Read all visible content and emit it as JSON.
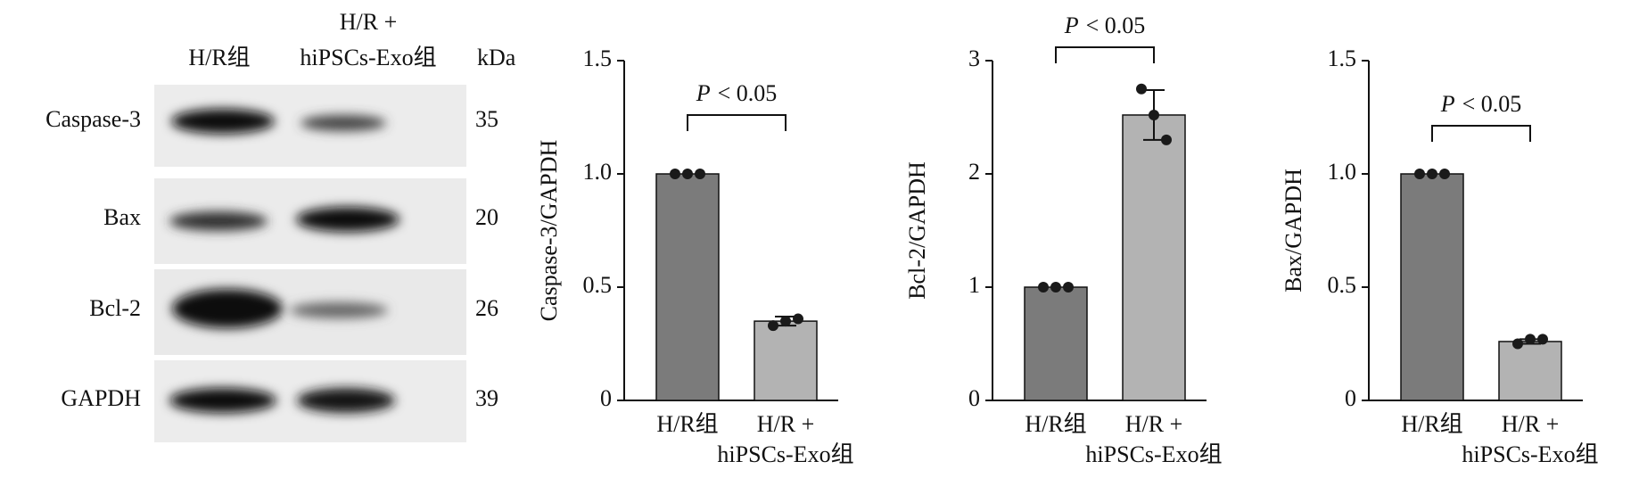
{
  "blot": {
    "columns": [
      [
        "H/R组"
      ],
      [
        "H/R +",
        "hiPSCs-Exo组"
      ]
    ],
    "unit": "kDa",
    "rows": [
      {
        "label": "Caspase-3",
        "kda": "35"
      },
      {
        "label": "Bax",
        "kda": "20"
      },
      {
        "label": "Bcl-2",
        "kda": "26"
      },
      {
        "label": "GAPDH",
        "kda": "39"
      }
    ]
  },
  "chart_data": [
    {
      "type": "bar",
      "ylabel": "Caspase-3/GAPDH",
      "categories": [
        [
          "H/R组"
        ],
        [
          "H/R +",
          "hiPSCs-Exo组"
        ]
      ],
      "values": [
        1.0,
        0.35
      ],
      "errors": [
        0,
        0.02
      ],
      "points": [
        [
          1.0,
          1.0,
          1.0
        ],
        [
          0.33,
          0.35,
          0.36
        ]
      ],
      "colors": [
        "#7b7b7b",
        "#b3b3b3"
      ],
      "ylim": [
        0,
        1.5
      ],
      "yticks": [
        0,
        0.5,
        {
          "value": 1,
          "label": "1.0"
        },
        1.5
      ],
      "annotation": [
        "P",
        "< 0.05"
      ]
    },
    {
      "type": "bar",
      "ylabel": "Bcl-2/GAPDH",
      "categories": [
        [
          "H/R组"
        ],
        [
          "H/R +",
          "hiPSCs-Exo组"
        ]
      ],
      "values": [
        1.0,
        2.52
      ],
      "errors": [
        0,
        0.22
      ],
      "points": [
        [
          1.0,
          1.0,
          1.0
        ],
        [
          2.75,
          2.52,
          2.3
        ]
      ],
      "colors": [
        "#7b7b7b",
        "#b3b3b3"
      ],
      "ylim": [
        0,
        3
      ],
      "yticks": [
        0,
        1,
        2,
        3
      ],
      "annotation": [
        "P",
        "< 0.05"
      ]
    },
    {
      "type": "bar",
      "ylabel": "Bax/GAPDH",
      "categories": [
        [
          "H/R组"
        ],
        [
          "H/R +",
          "hiPSCs-Exo组"
        ]
      ],
      "values": [
        1.0,
        0.26
      ],
      "errors": [
        0,
        0.01
      ],
      "points": [
        [
          1.0,
          1.0,
          1.0
        ],
        [
          0.25,
          0.27,
          0.27
        ]
      ],
      "colors": [
        "#7b7b7b",
        "#b3b3b3"
      ],
      "ylim": [
        0,
        1.5
      ],
      "yticks": [
        0,
        0.5,
        {
          "value": 1,
          "label": "1.0"
        },
        1.5
      ],
      "annotation": [
        "P",
        "< 0.05"
      ]
    }
  ]
}
